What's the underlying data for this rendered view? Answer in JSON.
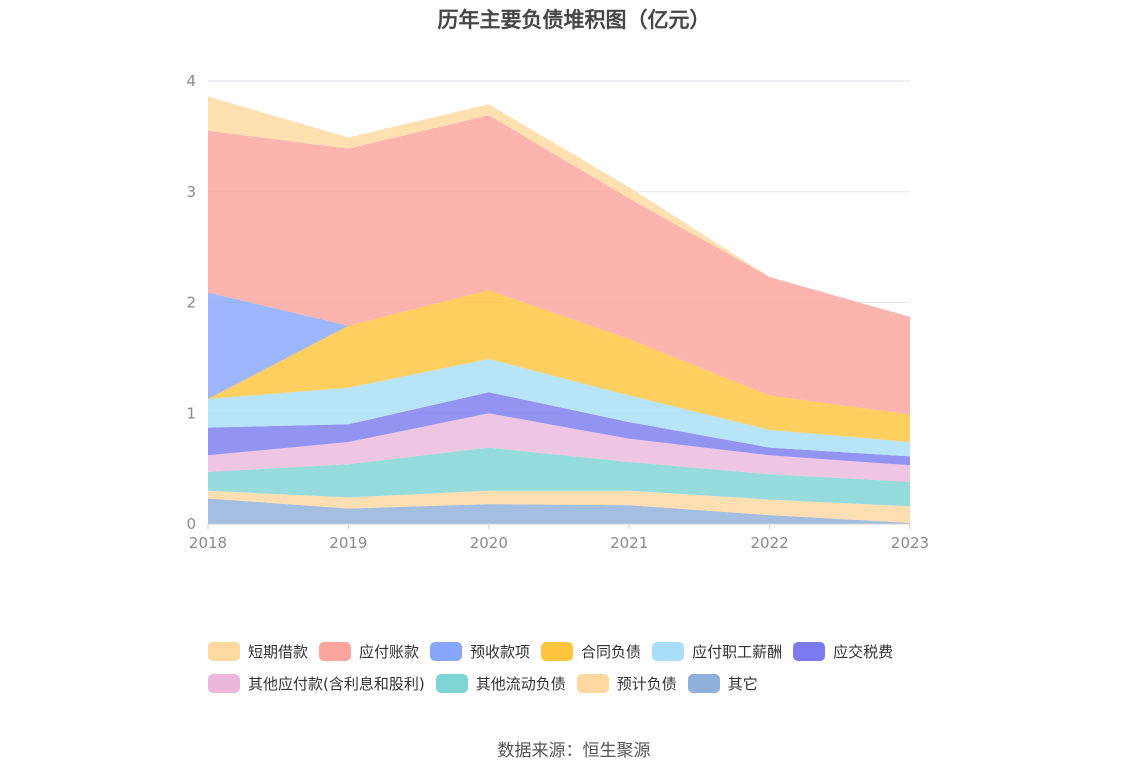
{
  "chart_data": {
    "type": "area",
    "stacked": true,
    "title": "历年主要负债堆积图（亿元）",
    "x": [
      "2018",
      "2019",
      "2020",
      "2021",
      "2022",
      "2023"
    ],
    "ylim": [
      0,
      4
    ],
    "yticks": [
      "0",
      "1",
      "2",
      "3",
      "4"
    ],
    "grid": true,
    "legend_position": "bottom",
    "series": [
      {
        "name": "其它",
        "color": "#8fb0db",
        "values": [
          0.23,
          0.14,
          0.18,
          0.17,
          0.08,
          0.01
        ]
      },
      {
        "name": "预计负债",
        "color": "#ffd8a0",
        "values": [
          0.07,
          0.1,
          0.12,
          0.13,
          0.14,
          0.15
        ]
      },
      {
        "name": "其他流动负债",
        "color": "#7fd4d4",
        "values": [
          0.17,
          0.3,
          0.39,
          0.26,
          0.23,
          0.22
        ]
      },
      {
        "name": "其他应付款(含利息和股利)",
        "color": "#eab8dc",
        "values": [
          0.15,
          0.2,
          0.31,
          0.21,
          0.17,
          0.15
        ]
      },
      {
        "name": "应交税费",
        "color": "#7b7bef",
        "values": [
          0.25,
          0.16,
          0.19,
          0.15,
          0.07,
          0.08
        ]
      },
      {
        "name": "应付职工薪酬",
        "color": "#a8def8",
        "values": [
          0.26,
          0.33,
          0.3,
          0.24,
          0.16,
          0.13
        ]
      },
      {
        "name": "合同负债",
        "color": "#ffc53d",
        "values": [
          0.0,
          0.56,
          0.62,
          0.51,
          0.31,
          0.25
        ]
      },
      {
        "name": "预收款项",
        "color": "#88a6fc",
        "values": [
          0.96,
          0.0,
          0.0,
          0.0,
          0.0,
          0.0
        ]
      },
      {
        "name": "应付账款",
        "color": "#fba59c",
        "values": [
          1.46,
          1.6,
          1.58,
          1.27,
          1.07,
          0.88
        ]
      },
      {
        "name": "短期借款",
        "color": "#ffd9a0",
        "values": [
          0.31,
          0.1,
          0.1,
          0.1,
          0.0,
          0.0
        ]
      }
    ]
  },
  "legend": {
    "rows": [
      [
        {
          "name": "短期借款",
          "color": "#ffd9a0"
        },
        {
          "name": "应付账款",
          "color": "#fba59c"
        },
        {
          "name": "预收款项",
          "color": "#88a6fc"
        },
        {
          "name": "合同负债",
          "color": "#ffc53d"
        },
        {
          "name": "应付职工薪酬",
          "color": "#a8def8"
        },
        {
          "name": "应交税费",
          "color": "#7b7bef"
        }
      ],
      [
        {
          "name": "其他应付款(含利息和股利)",
          "color": "#eab8dc"
        },
        {
          "name": "其他流动负债",
          "color": "#7fd4d4"
        },
        {
          "name": "预计负债",
          "color": "#ffd8a0"
        },
        {
          "name": "其它",
          "color": "#8fb0db"
        }
      ]
    ]
  },
  "source": "数据来源：恒生聚源"
}
